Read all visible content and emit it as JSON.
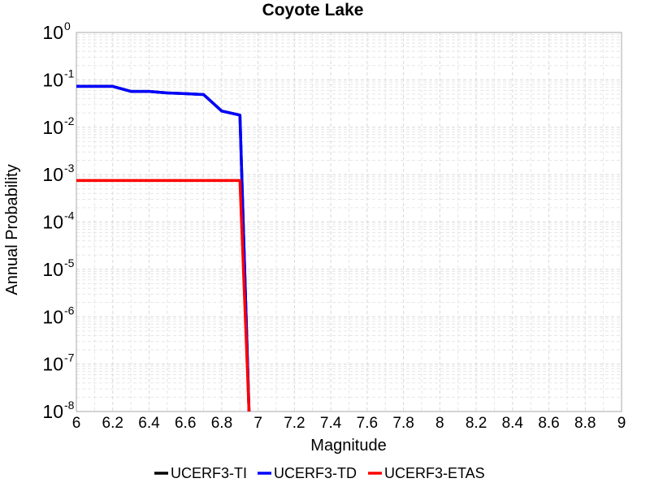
{
  "chart_data": {
    "type": "line",
    "title": "Coyote Lake",
    "xlabel": "Magnitude",
    "ylabel": "Annual Probability",
    "xlim": [
      6,
      9
    ],
    "ylim": [
      1e-08,
      1
    ],
    "yscale": "log",
    "grid": true,
    "legend_position": "bottom",
    "x_ticks": [
      "6",
      "6.2",
      "6.4",
      "6.6",
      "6.8",
      "7",
      "7.2",
      "7.4",
      "7.6",
      "7.8",
      "8",
      "8.2",
      "8.4",
      "8.6",
      "8.8",
      "9"
    ],
    "y_ticks": [
      {
        "base": "10",
        "exp": "0"
      },
      {
        "base": "10",
        "exp": "-1"
      },
      {
        "base": "10",
        "exp": "-2"
      },
      {
        "base": "10",
        "exp": "-3"
      },
      {
        "base": "10",
        "exp": "-4"
      },
      {
        "base": "10",
        "exp": "-5"
      },
      {
        "base": "10",
        "exp": "-6"
      },
      {
        "base": "10",
        "exp": "-7"
      },
      {
        "base": "10",
        "exp": "-8"
      }
    ],
    "series": [
      {
        "name": "UCERF3-TI",
        "color": "#000000",
        "x": [
          6.0,
          6.1,
          6.2,
          6.3,
          6.4,
          6.5,
          6.6,
          6.7,
          6.8,
          6.9,
          6.95
        ],
        "y": [
          0.073,
          0.073,
          0.073,
          0.057,
          0.057,
          0.053,
          0.051,
          0.049,
          0.022,
          0.018,
          1e-08
        ]
      },
      {
        "name": "UCERF3-TD",
        "color": "#0000ff",
        "x": [
          6.0,
          6.1,
          6.2,
          6.3,
          6.4,
          6.5,
          6.6,
          6.7,
          6.8,
          6.9,
          6.95
        ],
        "y": [
          0.073,
          0.073,
          0.073,
          0.057,
          0.057,
          0.053,
          0.051,
          0.049,
          0.022,
          0.018,
          1e-08
        ]
      },
      {
        "name": "UCERF3-ETAS",
        "color": "#ff0000",
        "x": [
          6.0,
          6.9,
          6.95
        ],
        "y": [
          0.00075,
          0.00075,
          1e-08
        ]
      }
    ]
  }
}
